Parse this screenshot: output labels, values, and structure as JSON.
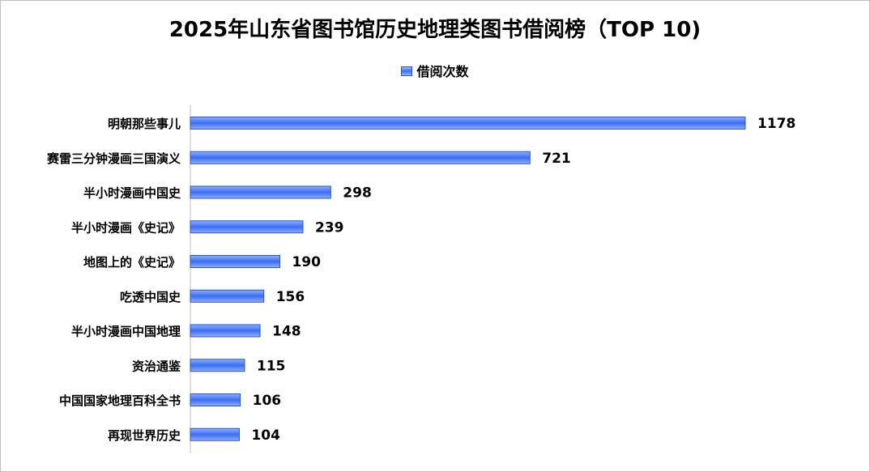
{
  "chart_data": {
    "type": "bar",
    "orientation": "horizontal",
    "title": "2025年山东省图书馆历史地理类图书借阅榜（TOP 10)",
    "legend_position": "top",
    "series": [
      {
        "name": "借阅次数",
        "values": [
          1178,
          721,
          298,
          239,
          190,
          156,
          148,
          115,
          106,
          104
        ]
      }
    ],
    "categories": [
      "明朝那些事儿",
      "赛雷三分钟漫画三国演义",
      "半小时漫画中国史",
      "半小时漫画《史记》",
      "地图上的《史记》",
      "吃透中国史",
      "半小时漫画中国地理",
      "资治通鉴",
      "中国国家地理百科全书",
      "再现世界历史"
    ],
    "xlim": [
      0,
      1178
    ],
    "grid": false,
    "data_labels": true,
    "colors": {
      "bar_mid": "#3b6ef0",
      "bar_edge": "#2d55c8",
      "bar_light": "#9db9ff"
    }
  }
}
